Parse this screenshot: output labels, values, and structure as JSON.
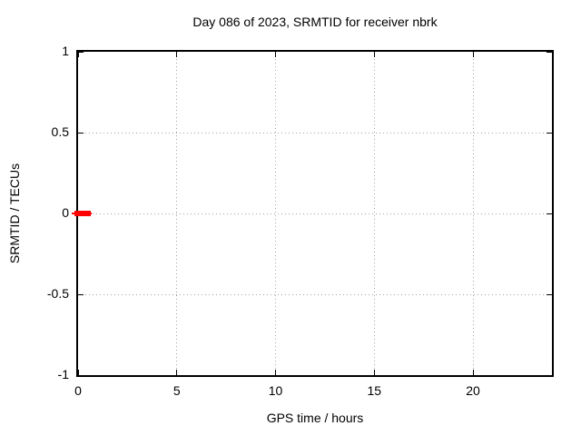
{
  "chart_data": {
    "type": "line",
    "title": "Day 086 of 2023, SRMTID for receiver nbrk",
    "xlabel": "GPS time / hours",
    "ylabel": "SRMTID / TECUs",
    "xlim": [
      0,
      24
    ],
    "ylim": [
      -1,
      1
    ],
    "xticks": [
      0,
      5,
      10,
      15,
      20
    ],
    "yticks": [
      -1,
      -0.5,
      0,
      0.5,
      1
    ],
    "grid": true,
    "grid_style": "dotted",
    "legend": false,
    "series": [
      {
        "name": "SRMTID",
        "color": "#ff0000",
        "linewidth": 6,
        "x": [
          0,
          0.5
        ],
        "y": [
          0,
          0
        ]
      }
    ]
  },
  "colors": {
    "background": "#ffffff",
    "border": "#000000",
    "grid": "#a3a3a3",
    "text": "#000000",
    "series": "#ff0000"
  }
}
